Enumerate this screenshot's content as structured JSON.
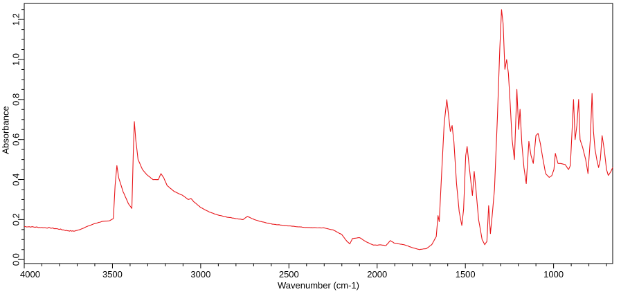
{
  "chart_data": {
    "type": "line",
    "xlabel": "Wavenumber (cm-1)",
    "ylabel": "Absorbance",
    "xlim": [
      4000,
      665
    ],
    "ylim": [
      -0.02,
      1.28
    ],
    "x_reversed": true,
    "grid": false,
    "line_color": "#e8161a",
    "x_ticks": [
      4000,
      3500,
      3000,
      2500,
      2000,
      1500,
      1000
    ],
    "x_tick_labels": [
      "4000",
      "3500",
      "3000",
      "2500",
      "2000",
      "1500",
      "1000"
    ],
    "y_ticks": [
      0.0,
      0.2,
      0.4,
      0.6,
      0.8,
      1.0,
      1.2
    ],
    "y_tick_labels": [
      "0,0",
      "0,2",
      "0,4",
      "0,6",
      "0,8",
      "1,0",
      "1,2"
    ],
    "series": [
      {
        "points": [
          [
            4000,
            0.165
          ],
          [
            3950,
            0.163
          ],
          [
            3900,
            0.16
          ],
          [
            3850,
            0.158
          ],
          [
            3800,
            0.152
          ],
          [
            3760,
            0.145
          ],
          [
            3720,
            0.142
          ],
          [
            3690,
            0.148
          ],
          [
            3650,
            0.163
          ],
          [
            3600,
            0.18
          ],
          [
            3560,
            0.19
          ],
          [
            3520,
            0.193
          ],
          [
            3495,
            0.205
          ],
          [
            3485,
            0.37
          ],
          [
            3475,
            0.47
          ],
          [
            3465,
            0.41
          ],
          [
            3440,
            0.34
          ],
          [
            3410,
            0.28
          ],
          [
            3390,
            0.255
          ],
          [
            3382,
            0.53
          ],
          [
            3376,
            0.69
          ],
          [
            3368,
            0.6
          ],
          [
            3355,
            0.5
          ],
          [
            3330,
            0.45
          ],
          [
            3300,
            0.42
          ],
          [
            3270,
            0.4
          ],
          [
            3240,
            0.4
          ],
          [
            3225,
            0.43
          ],
          [
            3210,
            0.41
          ],
          [
            3190,
            0.37
          ],
          [
            3150,
            0.34
          ],
          [
            3100,
            0.32
          ],
          [
            3070,
            0.3
          ],
          [
            3055,
            0.305
          ],
          [
            3040,
            0.29
          ],
          [
            3000,
            0.26
          ],
          [
            2950,
            0.237
          ],
          [
            2900,
            0.222
          ],
          [
            2850,
            0.212
          ],
          [
            2800,
            0.205
          ],
          [
            2760,
            0.2
          ],
          [
            2735,
            0.216
          ],
          [
            2715,
            0.207
          ],
          [
            2680,
            0.195
          ],
          [
            2600,
            0.178
          ],
          [
            2500,
            0.168
          ],
          [
            2400,
            0.16
          ],
          [
            2300,
            0.158
          ],
          [
            2250,
            0.148
          ],
          [
            2200,
            0.125
          ],
          [
            2170,
            0.09
          ],
          [
            2155,
            0.078
          ],
          [
            2140,
            0.105
          ],
          [
            2100,
            0.11
          ],
          [
            2060,
            0.088
          ],
          [
            2020,
            0.072
          ],
          [
            1980,
            0.073
          ],
          [
            1950,
            0.07
          ],
          [
            1925,
            0.095
          ],
          [
            1905,
            0.083
          ],
          [
            1850,
            0.075
          ],
          [
            1800,
            0.06
          ],
          [
            1760,
            0.05
          ],
          [
            1720,
            0.055
          ],
          [
            1690,
            0.075
          ],
          [
            1665,
            0.115
          ],
          [
            1655,
            0.22
          ],
          [
            1648,
            0.19
          ],
          [
            1635,
            0.42
          ],
          [
            1620,
            0.68
          ],
          [
            1605,
            0.8
          ],
          [
            1595,
            0.72
          ],
          [
            1585,
            0.64
          ],
          [
            1575,
            0.67
          ],
          [
            1565,
            0.59
          ],
          [
            1550,
            0.38
          ],
          [
            1535,
            0.24
          ],
          [
            1520,
            0.17
          ],
          [
            1510,
            0.25
          ],
          [
            1498,
            0.52
          ],
          [
            1490,
            0.565
          ],
          [
            1480,
            0.48
          ],
          [
            1470,
            0.4
          ],
          [
            1460,
            0.32
          ],
          [
            1450,
            0.44
          ],
          [
            1440,
            0.35
          ],
          [
            1425,
            0.2
          ],
          [
            1405,
            0.1
          ],
          [
            1390,
            0.075
          ],
          [
            1378,
            0.09
          ],
          [
            1368,
            0.27
          ],
          [
            1358,
            0.13
          ],
          [
            1348,
            0.22
          ],
          [
            1335,
            0.35
          ],
          [
            1318,
            0.72
          ],
          [
            1305,
            1.05
          ],
          [
            1295,
            1.25
          ],
          [
            1286,
            1.18
          ],
          [
            1276,
            0.95
          ],
          [
            1266,
            1.0
          ],
          [
            1256,
            0.93
          ],
          [
            1246,
            0.78
          ],
          [
            1235,
            0.6
          ],
          [
            1222,
            0.5
          ],
          [
            1208,
            0.85
          ],
          [
            1198,
            0.65
          ],
          [
            1190,
            0.75
          ],
          [
            1180,
            0.58
          ],
          [
            1168,
            0.46
          ],
          [
            1155,
            0.38
          ],
          [
            1140,
            0.59
          ],
          [
            1128,
            0.52
          ],
          [
            1115,
            0.48
          ],
          [
            1100,
            0.62
          ],
          [
            1088,
            0.63
          ],
          [
            1075,
            0.58
          ],
          [
            1060,
            0.5
          ],
          [
            1045,
            0.43
          ],
          [
            1025,
            0.41
          ],
          [
            1010,
            0.42
          ],
          [
            998,
            0.45
          ],
          [
            990,
            0.53
          ],
          [
            975,
            0.48
          ],
          [
            960,
            0.48
          ],
          [
            935,
            0.475
          ],
          [
            915,
            0.45
          ],
          [
            905,
            0.47
          ],
          [
            895,
            0.65
          ],
          [
            887,
            0.8
          ],
          [
            878,
            0.6
          ],
          [
            868,
            0.67
          ],
          [
            858,
            0.8
          ],
          [
            850,
            0.6
          ],
          [
            835,
            0.56
          ],
          [
            818,
            0.5
          ],
          [
            805,
            0.43
          ],
          [
            792,
            0.6
          ],
          [
            782,
            0.83
          ],
          [
            774,
            0.64
          ],
          [
            765,
            0.55
          ],
          [
            755,
            0.5
          ],
          [
            745,
            0.46
          ],
          [
            735,
            0.5
          ],
          [
            725,
            0.62
          ],
          [
            713,
            0.55
          ],
          [
            700,
            0.45
          ],
          [
            690,
            0.42
          ],
          [
            675,
            0.44
          ],
          [
            665,
            0.46
          ]
        ]
      }
    ]
  }
}
